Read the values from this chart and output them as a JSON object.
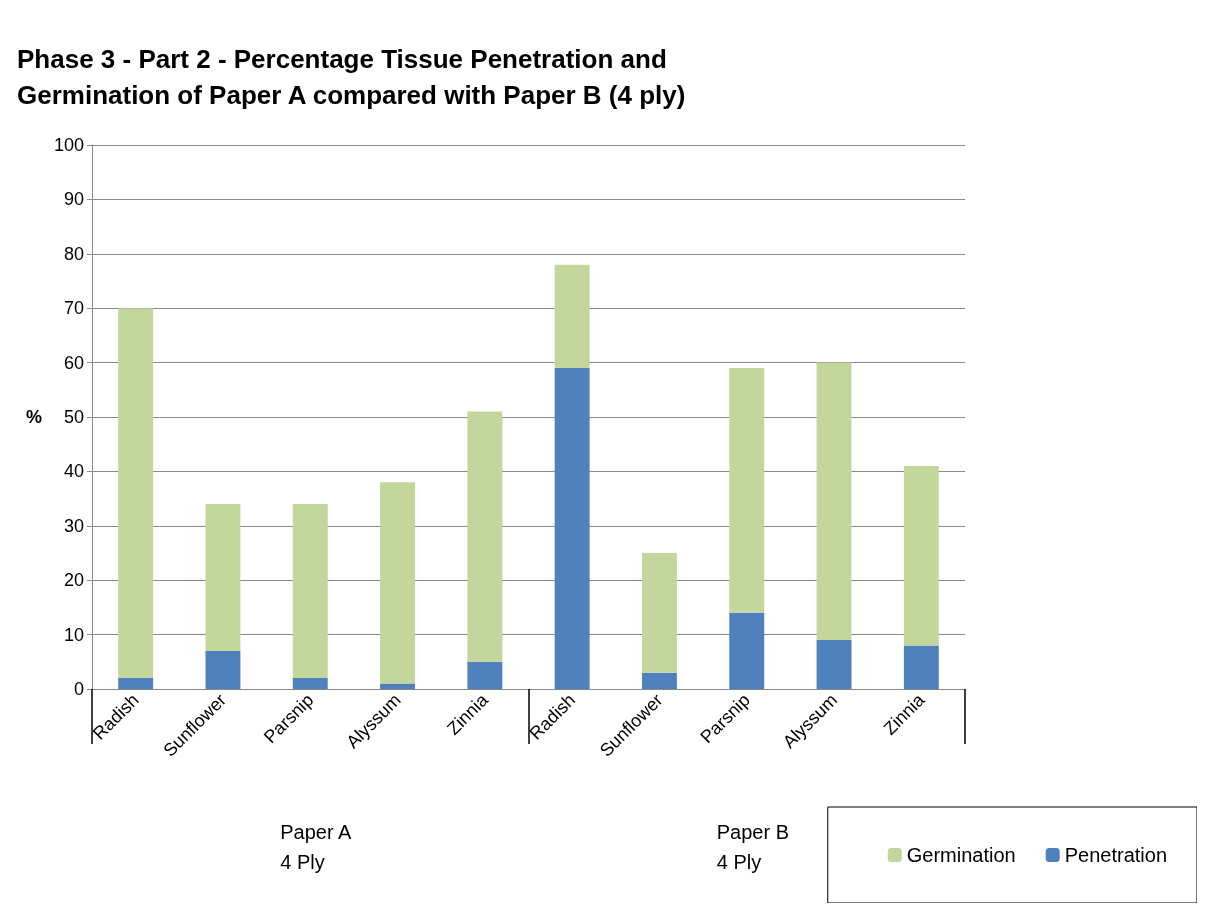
{
  "chart_data": {
    "type": "bar",
    "title": "Phase 3 - Part 2 - Percentage Tissue Penetration and\nGermination of Paper A compared with Paper B (4 ply)",
    "ylabel": "%",
    "categories": [
      "Radish",
      "Sunflower",
      "Parsnip",
      "Alyssum",
      "Zinnia",
      "Radish",
      "Sunflower",
      "Parsnip",
      "Alyssum",
      "Zinnia"
    ],
    "series": [
      {
        "name": "Penetration",
        "color": "#4f81bd",
        "values": [
          2,
          7,
          2,
          1,
          5,
          59,
          3,
          14,
          9,
          8
        ]
      },
      {
        "name": "Germination",
        "color": "#c3d69b",
        "values": [
          68,
          27,
          32,
          37,
          46,
          19,
          22,
          45,
          51,
          33
        ]
      }
    ],
    "stacked": true,
    "ylim": [
      0,
      100
    ],
    "yticks": [
      0,
      10,
      20,
      30,
      40,
      50,
      60,
      70,
      80,
      90,
      100
    ],
    "grid": "y",
    "legend": "bottom right",
    "annotations": [
      "Paper A\n4 Ply",
      "Paper B\n4 Ply"
    ]
  }
}
